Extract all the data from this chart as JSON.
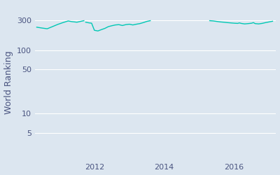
{
  "ylabel": "World Ranking",
  "line_color": "#00c8b4",
  "bg_color": "#dce6f0",
  "fig_bg_color": "#dce6f0",
  "yticks": [
    5,
    10,
    50,
    100,
    300
  ],
  "xtick_years": [
    2012,
    2014,
    2016
  ],
  "xlim": [
    2010.3,
    2017.2
  ],
  "ylim_log": [
    1.8,
    550
  ],
  "linewidth": 1.0,
  "segments": [
    {
      "x": [
        2010.35,
        2010.5,
        2010.65,
        2010.8,
        2010.95,
        2011.1,
        2011.25,
        2011.35,
        2011.5,
        2011.6,
        2011.7
      ],
      "y": [
        235,
        228,
        222,
        240,
        260,
        278,
        295,
        288,
        282,
        290,
        298
      ]
    },
    {
      "x": [
        2011.75,
        2011.85,
        2011.92,
        2012.0,
        2012.1,
        2012.2,
        2012.3,
        2012.4,
        2012.5,
        2012.6,
        2012.7,
        2012.8,
        2012.9,
        2013.0,
        2013.1,
        2013.2,
        2013.3,
        2013.4,
        2013.5,
        2013.6
      ],
      "y": [
        282,
        275,
        272,
        210,
        205,
        215,
        225,
        240,
        248,
        255,
        258,
        250,
        258,
        262,
        255,
        262,
        268,
        278,
        290,
        298
      ]
    },
    {
      "x": [
        2015.3,
        2015.4,
        2015.5,
        2015.6,
        2015.7,
        2015.8,
        2015.9,
        2016.0,
        2016.1,
        2016.15,
        2016.2,
        2016.3,
        2016.4,
        2016.5,
        2016.55,
        2016.6,
        2016.7,
        2016.8,
        2016.9,
        2017.0,
        2017.1
      ],
      "y": [
        298,
        295,
        290,
        285,
        282,
        278,
        275,
        272,
        270,
        275,
        270,
        265,
        268,
        272,
        278,
        268,
        265,
        270,
        278,
        285,
        292
      ]
    }
  ]
}
